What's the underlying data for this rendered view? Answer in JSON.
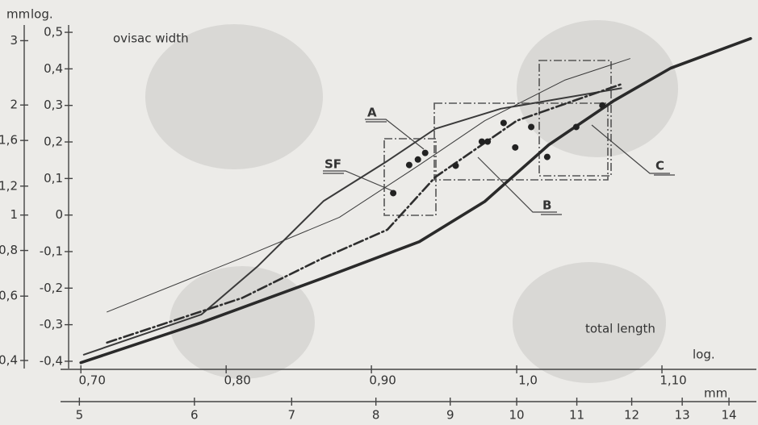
{
  "chart_data": {
    "type": "line",
    "title": "ovisac width",
    "xlabel": "total length",
    "x_unit": "log.",
    "y_unit": "log.",
    "x2_unit": "mm",
    "y2_unit": "mm",
    "xlim": [
      0.686,
      1.165
    ],
    "xticks": [
      {
        "value": 0.7,
        "label": "0,70"
      },
      {
        "value": 0.8,
        "label": "0,80"
      },
      {
        "value": 0.9,
        "label": "0,90"
      },
      {
        "value": 1.0,
        "label": "1,0"
      },
      {
        "value": 1.1,
        "label": "1,10"
      }
    ],
    "ylim": [
      -0.42,
      0.52
    ],
    "yticks": [
      {
        "value": 0.5,
        "label": "0,5"
      },
      {
        "value": 0.4,
        "label": "0,4"
      },
      {
        "value": 0.3,
        "label": "0,3"
      },
      {
        "value": 0.2,
        "label": "0,2"
      },
      {
        "value": 0.1,
        "label": "0,1"
      },
      0,
      {
        "value": -0.1,
        "label": "-0,1"
      },
      {
        "value": -0.2,
        "label": "-0,2"
      },
      {
        "value": -0.3,
        "label": "-0,3"
      },
      {
        "value": -0.4,
        "label": "-0,4"
      }
    ],
    "x2log": true,
    "x2ticks": [
      5,
      6,
      7,
      8,
      9,
      10,
      11,
      12,
      13,
      14
    ],
    "y2log": true,
    "y2ticks": [
      3,
      2,
      {
        "value": 1.6,
        "label": "1,6"
      },
      {
        "value": 1.2,
        "label": "1,2"
      },
      1,
      {
        "value": 0.8,
        "label": "0,8"
      },
      {
        "value": 0.6,
        "label": "0,6"
      },
      {
        "value": 0.4,
        "label": "0,4"
      }
    ],
    "annotations": [
      "SF",
      "A",
      "B",
      "C"
    ],
    "series": [
      {
        "color": "#3a3a3a",
        "x": [
          0.718,
          0.811,
          0.878,
          0.933,
          0.978,
          1.033,
          1.078
        ],
        "y": [
          -0.265,
          -0.117,
          -0.006,
          0.137,
          0.258,
          0.369,
          0.428
        ]
      },
      {
        "color": "#3a3a3a",
        "x": [
          0.702,
          0.783,
          0.822,
          0.867,
          0.911,
          0.944,
          0.989,
          1.072
        ],
        "y": [
          -0.382,
          -0.272,
          -0.139,
          0.038,
          0.148,
          0.236,
          0.291,
          0.347
        ]
      },
      {
        "color": "#2e2e2e",
        "x": [
          0.718,
          0.811,
          0.867,
          0.911,
          0.944,
          1.0,
          1.072
        ],
        "y": [
          -0.349,
          -0.227,
          -0.117,
          -0.04,
          0.104,
          0.258,
          0.358
        ]
      },
      {
        "color": "#2a2a2a",
        "x": [
          0.7,
          0.783,
          0.867,
          0.933,
          0.978,
          1.022,
          1.067,
          1.106,
          1.161
        ],
        "y": [
          -0.404,
          -0.294,
          -0.172,
          -0.073,
          0.037,
          0.192,
          0.313,
          0.402,
          0.483
        ]
      }
    ],
    "points": {
      "color": "#222222",
      "x": [
        0.915,
        0.926,
        0.932,
        0.937,
        0.958,
        0.976,
        0.98,
        0.991,
        0.999,
        1.01,
        1.021,
        1.041,
        1.059
      ],
      "y": [
        0.06,
        0.137,
        0.152,
        0.17,
        0.135,
        0.201,
        0.201,
        0.252,
        0.185,
        0.241,
        0.159,
        0.241,
        0.3
      ]
    }
  }
}
